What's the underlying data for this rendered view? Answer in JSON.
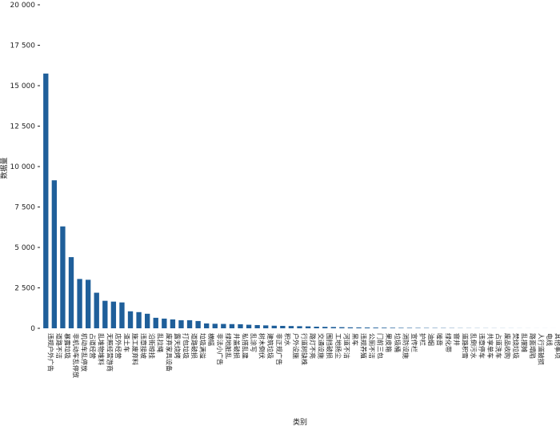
{
  "chart_data": {
    "type": "bar",
    "y_label": "数据量",
    "x_label": "类别",
    "color": "#1f5f9a",
    "categories": [
      "违规户外广告",
      "道路不洁",
      "暴露垃圾",
      "非机动车乱停放",
      "机动车乱停放",
      "占道经营",
      "乱堆物堆料",
      "无照经营游商",
      "店外经营",
      "渣土车",
      "施工废弃料",
      "违章接坡",
      "沿街晾挂",
      "乱拉绳",
      "废弃家具设备",
      "露天烧烤",
      "打包垃圾",
      "道路破损",
      "垃圾满溢",
      "横幅",
      "非法小广告",
      "绿地脏乱",
      "井盖破损",
      "私搭乱建",
      "乱涂写",
      "树木倒伏",
      "建筑垃圾",
      "非正规广告",
      "积水",
      "户外设施",
      "行道树缺株",
      "路灯不亮",
      "交通设施",
      "围挡破损",
      "工地扬尘",
      "河道不洁",
      "黑车",
      "违规养殖",
      "公厕不洁",
      "门前三包",
      "果皮箱",
      "垃圾桶",
      "消防设施",
      "宣传栏",
      "护栏",
      "油烟",
      "噪音",
      "绿化带",
      "窨井",
      "道路积雪",
      "乱倒污水",
      "违章停车",
      "共享单车",
      "占道洗车",
      "废品收购",
      "焚烧垃圾",
      "乱摆摊",
      "路面塌陷",
      "人行道破损",
      "电线",
      "其他事项"
    ],
    "values": [
      15750,
      9150,
      6300,
      4400,
      3050,
      3000,
      2200,
      1700,
      1650,
      1600,
      1050,
      1000,
      900,
      650,
      600,
      550,
      500,
      500,
      450,
      300,
      280,
      270,
      260,
      250,
      220,
      200,
      180,
      160,
      150,
      140,
      130,
      120,
      100,
      90,
      80,
      70,
      60,
      55,
      50,
      45,
      40,
      35,
      30,
      28,
      25,
      22,
      20,
      18,
      15,
      12,
      10,
      9,
      8,
      7,
      6,
      5,
      4,
      3,
      2,
      2,
      1
    ],
    "ylim": [
      0,
      20000
    ],
    "yticks": [
      0,
      {
        "value": 2500,
        "label": "2 500"
      },
      {
        "value": 5000,
        "label": "5 000"
      },
      {
        "value": 7500,
        "label": "7 500"
      },
      {
        "value": 10000,
        "label": "10 000"
      },
      {
        "value": 12500,
        "label": "12 500"
      },
      {
        "value": 15000,
        "label": "15 000"
      },
      {
        "value": 17500,
        "label": "17 500"
      },
      {
        "value": 20000,
        "label": "20 000"
      }
    ]
  }
}
